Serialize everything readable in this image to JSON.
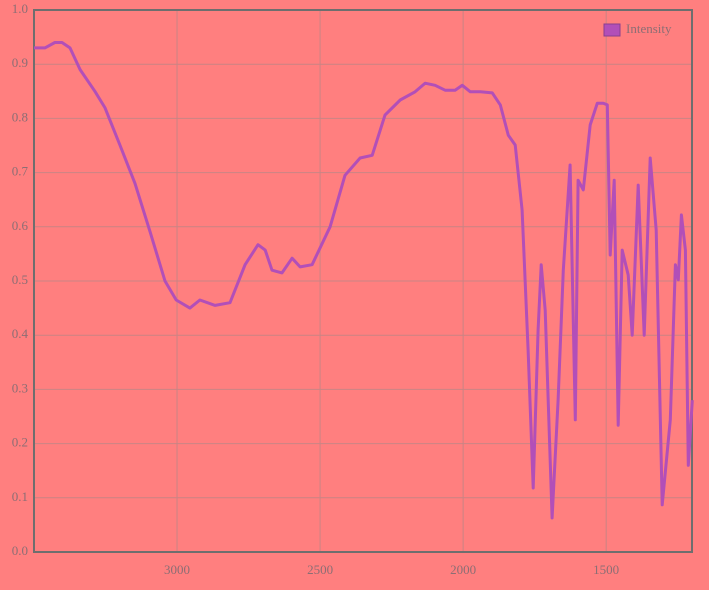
{
  "chart_data": {
    "type": "line",
    "x": [
      3500,
      3462,
      3427,
      3402,
      3374,
      3339,
      3287,
      3252,
      3199,
      3147,
      3094,
      3042,
      3003,
      2955,
      2920,
      2867,
      2815,
      2762,
      2717,
      2692,
      2668,
      2633,
      2598,
      2570,
      2528,
      2465,
      2413,
      2360,
      2318,
      2273,
      2220,
      2168,
      2133,
      2098,
      2063,
      2028,
      2003,
      1975,
      1940,
      1898,
      1870,
      1842,
      1818,
      1794,
      1773,
      1755,
      1738,
      1727,
      1713,
      1689,
      1668,
      1650,
      1626,
      1608,
      1598,
      1580,
      1556,
      1531,
      1510,
      1496,
      1486,
      1472,
      1458,
      1444,
      1423,
      1409,
      1388,
      1367,
      1346,
      1325,
      1304,
      1276,
      1258,
      1248,
      1237,
      1223,
      1213,
      1199
    ],
    "series": [
      {
        "name": "Intensity",
        "color": "#b24fb8",
        "values": [
          0.93,
          0.93,
          0.94,
          0.94,
          0.93,
          0.89,
          0.85,
          0.82,
          0.75,
          0.68,
          0.59,
          0.5,
          0.465,
          0.45,
          0.465,
          0.455,
          0.46,
          0.53,
          0.567,
          0.557,
          0.52,
          0.515,
          0.542,
          0.526,
          0.53,
          0.6,
          0.695,
          0.727,
          0.732,
          0.806,
          0.834,
          0.849,
          0.865,
          0.861,
          0.852,
          0.852,
          0.861,
          0.849,
          0.849,
          0.847,
          0.825,
          0.769,
          0.751,
          0.631,
          0.373,
          0.118,
          0.41,
          0.53,
          0.446,
          0.063,
          0.28,
          0.52,
          0.714,
          0.244,
          0.686,
          0.668,
          0.788,
          0.828,
          0.828,
          0.825,
          0.548,
          0.686,
          0.234,
          0.557,
          0.511,
          0.4,
          0.677,
          0.4,
          0.727,
          0.594,
          0.087,
          0.244,
          0.53,
          0.502,
          0.622,
          0.557,
          0.16,
          0.28
        ]
      }
    ],
    "xlim": [
      3500,
      1200
    ],
    "xticks": [
      3000,
      2500,
      2000,
      1500
    ],
    "ylim": [
      0,
      1
    ],
    "yticks": [
      {
        "value": 0,
        "label": "0.0"
      },
      0.1,
      0.2,
      0.3,
      0.4,
      0.5,
      0.6,
      0.7,
      0.8,
      0.9,
      {
        "value": 1,
        "label": "1.0"
      }
    ],
    "grid": true,
    "legend": "top-right"
  }
}
